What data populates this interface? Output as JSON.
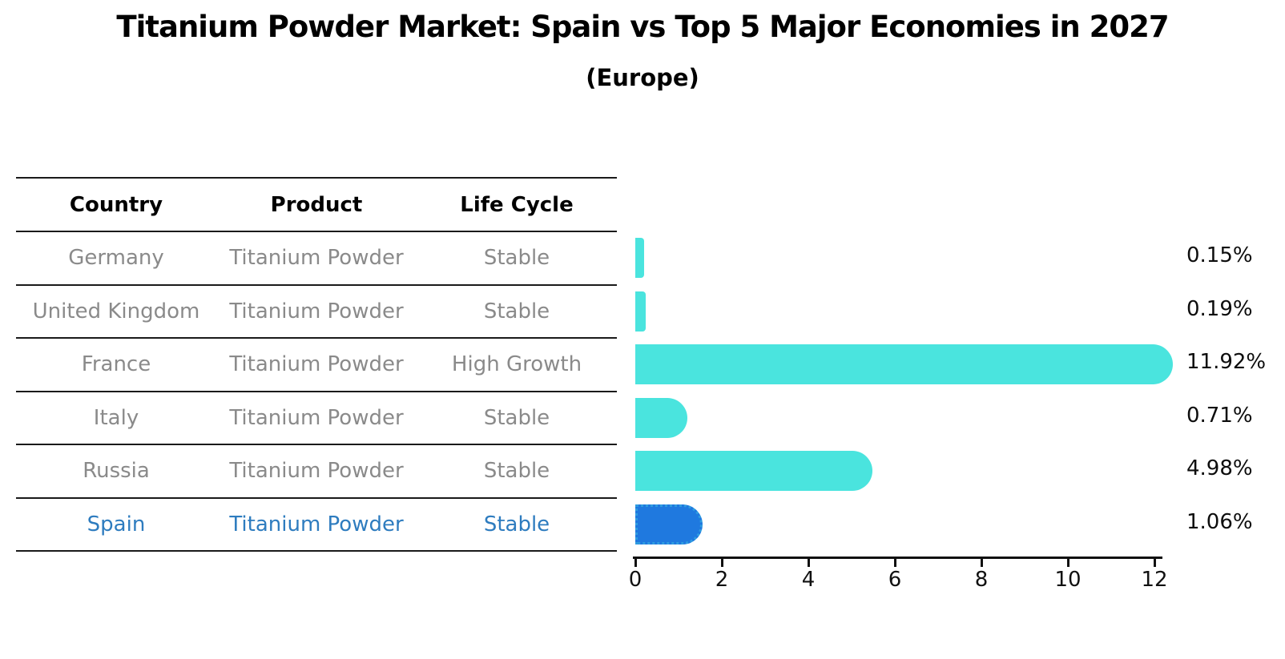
{
  "title": "Titanium Powder Market: Spain vs Top 5 Major Economies in 2027",
  "subtitle": "(Europe)",
  "table": {
    "headers": [
      "Country",
      "Product",
      "Life Cycle"
    ],
    "rows": [
      {
        "country": "Germany",
        "product": "Titanium Powder",
        "life_cycle": "Stable",
        "highlight": false
      },
      {
        "country": "United Kingdom",
        "product": "Titanium Powder",
        "life_cycle": "Stable",
        "highlight": false
      },
      {
        "country": "France",
        "product": "Titanium Powder",
        "life_cycle": "High Growth",
        "highlight": false
      },
      {
        "country": "Italy",
        "product": "Titanium Powder",
        "life_cycle": "Stable",
        "highlight": false
      },
      {
        "country": "Russia",
        "product": "Titanium Powder",
        "life_cycle": "Stable",
        "highlight": false
      },
      {
        "country": "Spain",
        "product": "Titanium Powder",
        "life_cycle": "Stable",
        "highlight": true
      }
    ]
  },
  "chart_data": {
    "type": "bar",
    "orientation": "horizontal",
    "title": "Titanium Powder Market: Spain vs Top 5 Major Economies in 2027 (Europe)",
    "categories": [
      "Germany",
      "United Kingdom",
      "France",
      "Italy",
      "Russia",
      "Spain"
    ],
    "values": [
      0.15,
      0.19,
      11.92,
      0.71,
      4.98,
      1.06
    ],
    "value_labels": [
      "0.15%",
      "0.19%",
      "11.92%",
      "0.71%",
      "4.98%",
      "1.06%"
    ],
    "highlight_index": 5,
    "x_ticks": [
      "0",
      "2",
      "4",
      "6",
      "8",
      "10",
      "12"
    ],
    "xlim": [
      0,
      12
    ],
    "grid": false,
    "legend": null,
    "bar_color": "#4AE4DE",
    "highlight_bar_color": "#1F79DF",
    "highlight_border_color": "#2F9CE0",
    "highlight_text_color": "#2E7CBF"
  },
  "colors": {
    "background": "#FFFFFF",
    "text": "#000000",
    "muted_text": "#8A8A8A",
    "line": "#1A1A1A"
  }
}
